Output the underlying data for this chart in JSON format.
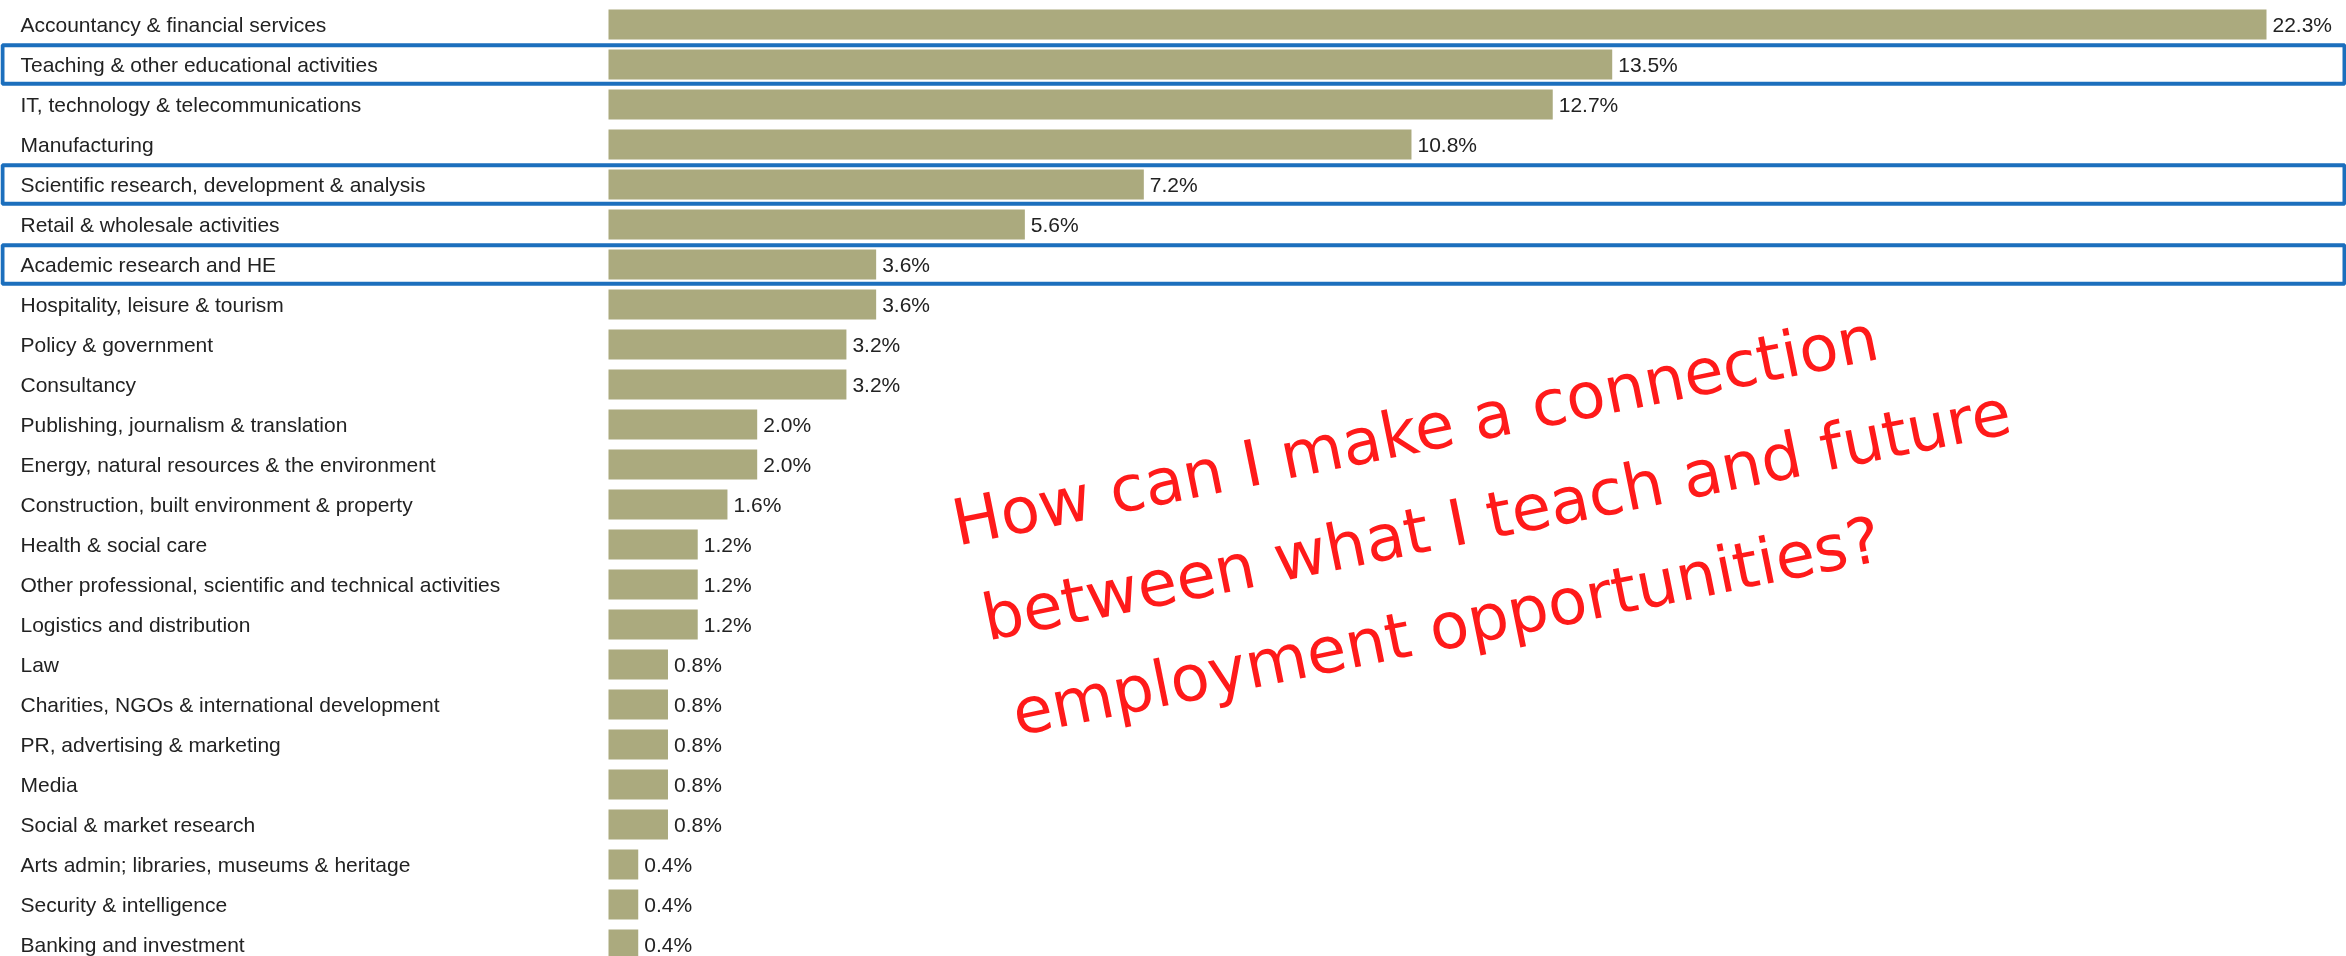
{
  "chart_data": {
    "type": "bar",
    "orientation": "horizontal",
    "categories": [
      "Accountancy & financial services",
      "Teaching & other educational activities",
      "IT, technology & telecommunications",
      "Manufacturing",
      "Scientific research, development & analysis",
      "Retail & wholesale activities",
      "Academic research and HE",
      "Hospitality, leisure & tourism",
      "Policy & government",
      "Consultancy",
      "Publishing, journalism & translation",
      "Energy, natural resources & the environment",
      "Construction, built environment & property",
      "Health & social care",
      "Other professional, scientific and technical activities",
      "Logistics and distribution",
      "Law",
      "Charities, NGOs & international development",
      "PR, advertising & marketing",
      "Media",
      "Social & market research",
      "Arts admin;  libraries, museums & heritage",
      "Security & intelligence",
      "Banking and investment"
    ],
    "values": [
      22.3,
      13.5,
      12.7,
      10.8,
      7.2,
      5.6,
      3.6,
      3.6,
      3.2,
      3.2,
      2.0,
      2.0,
      1.6,
      1.2,
      1.2,
      1.2,
      0.8,
      0.8,
      0.8,
      0.8,
      0.8,
      0.4,
      0.4,
      0.4
    ],
    "value_labels": [
      "22.3%",
      "13.5%",
      "12.7%",
      "10.8%",
      "7.2%",
      "5.6%",
      "3.6%",
      "3.6%",
      "3.2%",
      "3.2%",
      "2.0%",
      "2.0%",
      "1.6%",
      "1.2%",
      "1.2%",
      "1.2%",
      "0.8%",
      "0.8%",
      "0.8%",
      "0.8%",
      "0.8%",
      "0.4%",
      "0.4%",
      "0.4%"
    ],
    "color": "#abaa7e",
    "annotations": [
      "How can I make a connection between what I teach and future employment opportunities?"
    ],
    "grid": false
  }
}
